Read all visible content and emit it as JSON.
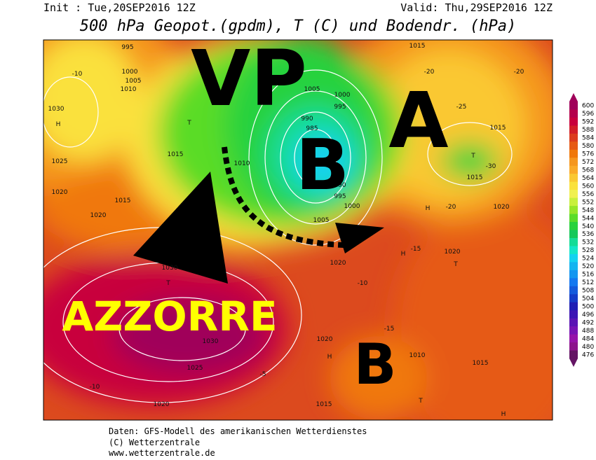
{
  "header": {
    "init": "Init : Tue,20SEP2016 12Z",
    "valid": "Valid: Thu,29SEP2016 12Z",
    "title": "500 hPa Geopot.(gpdm), T (C) und Bodendr. (hPa)"
  },
  "annotations": [
    "VP",
    "B",
    "A",
    "AZZORRE",
    "B"
  ],
  "map": {
    "labels": [
      "995",
      "1000",
      "1005",
      "1010",
      "1030",
      "H",
      "1025",
      "1020",
      "1015",
      "1020",
      "1015",
      "1010",
      "1005",
      "1000",
      "995",
      "990",
      "985",
      "990",
      "995",
      "1000",
      "1005",
      "1020",
      "1030",
      "T",
      "1030",
      "1025",
      "1020",
      "1020",
      "1015",
      "1010",
      "1015",
      "1015",
      "1020",
      "1020",
      "1015",
      "1015",
      "H",
      "H",
      "T",
      "T",
      "H",
      "H",
      "T",
      "T",
      "-10",
      "-20",
      "-25",
      "-20",
      "-30",
      "-15",
      "-5",
      "-10",
      "-10",
      "-15",
      "-20"
    ]
  },
  "legend": {
    "values": [
      600,
      596,
      592,
      588,
      584,
      580,
      576,
      572,
      568,
      564,
      560,
      556,
      552,
      548,
      544,
      540,
      536,
      532,
      528,
      524,
      520,
      516,
      512,
      508,
      504,
      500,
      496,
      492,
      488,
      484,
      480,
      476
    ],
    "colors": [
      "#a0005a",
      "#b4004b",
      "#c8003c",
      "#d21e28",
      "#dc3c1e",
      "#e65a14",
      "#f0780a",
      "#f5961e",
      "#faaa28",
      "#fac832",
      "#fae13c",
      "#f0f050",
      "#c8f03c",
      "#96e628",
      "#5adc28",
      "#28d23c",
      "#14c85a",
      "#14dc96",
      "#14e6c8",
      "#14d2f0",
      "#14b4f0",
      "#1496f0",
      "#1478f0",
      "#145adc",
      "#143cc8",
      "#1e1eb4",
      "#3c14b4",
      "#5a14b4",
      "#7814b4",
      "#9614aa",
      "#8c148c",
      "#641464"
    ]
  },
  "footer": [
    "Daten: GFS-Modell des amerikanischen Wetterdienstes",
    "(C) Wetterzentrale",
    "www.wetterzentrale.de"
  ]
}
